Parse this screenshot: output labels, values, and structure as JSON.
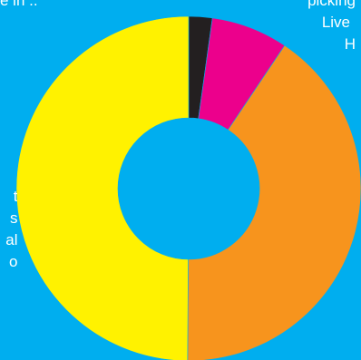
{
  "colors": {
    "background": "#00aeef"
  },
  "labels": {
    "top_left": "e in ..",
    "top_right": [
      "picking",
      "Live",
      "H"
    ],
    "left": [
      "t",
      "s",
      "al",
      "o"
    ]
  },
  "chart_data": {
    "type": "pie",
    "donut": true,
    "start_angle_deg": 0,
    "direction": "clockwise",
    "slices": [
      {
        "label": "",
        "value": 2.2,
        "color": "#231f20"
      },
      {
        "label": "",
        "value": 7.2,
        "color": "#ec008c"
      },
      {
        "label": "",
        "value": 40.7,
        "color": "#f7941d"
      },
      {
        "label": "",
        "value": 49.9,
        "color": "#fff200"
      }
    ],
    "title": "",
    "legend": "none"
  }
}
